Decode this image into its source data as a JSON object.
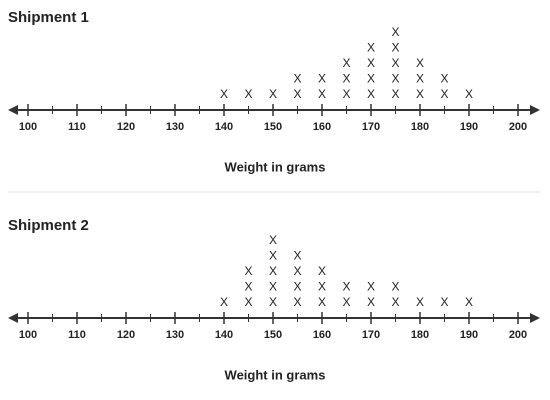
{
  "chart_data": [
    {
      "type": "dot",
      "title": "Shipment 1",
      "x_label": "Weight in grams",
      "marker": "X",
      "x": [
        140,
        145,
        150,
        155,
        160,
        165,
        170,
        175,
        180,
        185,
        190
      ],
      "values": [
        1,
        1,
        1,
        2,
        2,
        3,
        4,
        5,
        3,
        2,
        1
      ],
      "xlim": [
        100,
        200
      ],
      "xticks": [
        100,
        110,
        120,
        130,
        140,
        150,
        160,
        170,
        180,
        190,
        200
      ],
      "xminorticks": [
        105,
        115,
        125,
        135,
        145,
        155,
        165,
        175,
        185,
        195
      ]
    },
    {
      "type": "dot",
      "title": "Shipment 2",
      "x_label": "Weight in grams",
      "marker": "X",
      "x": [
        140,
        145,
        150,
        155,
        160,
        165,
        170,
        175,
        180,
        185,
        190
      ],
      "values": [
        1,
        3,
        5,
        4,
        3,
        2,
        2,
        2,
        1,
        1,
        1
      ],
      "xlim": [
        100,
        200
      ],
      "xticks": [
        100,
        110,
        120,
        130,
        140,
        150,
        160,
        170,
        180,
        190,
        200
      ],
      "xminorticks": [
        105,
        115,
        125,
        135,
        145,
        155,
        165,
        175,
        185,
        195
      ]
    }
  ]
}
